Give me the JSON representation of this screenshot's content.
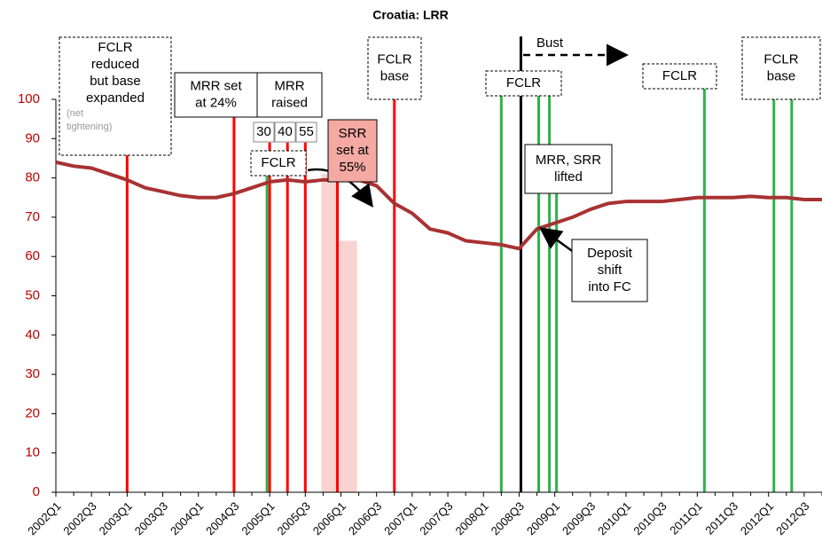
{
  "chart_data": {
    "type": "line",
    "title": "Croatia: LRR",
    "categories": [
      "2002Q1",
      null,
      "2002Q3",
      null,
      "2003Q1",
      null,
      "2003Q3",
      null,
      "2004Q1",
      null,
      "2004Q3",
      null,
      "2005Q1",
      null,
      "2005Q3",
      null,
      "2006Q1",
      null,
      "2006Q3",
      null,
      "2007Q1",
      null,
      "2007Q3",
      null,
      "2008Q1",
      null,
      "2008Q3",
      null,
      "2009Q1",
      null,
      "2009Q3",
      null,
      "2010Q1",
      null,
      "2010Q3",
      null,
      "2011Q1",
      null,
      "2011Q3",
      null,
      "2012Q1",
      null,
      "2012Q3",
      null
    ],
    "series": [
      {
        "color": "#a83232",
        "values": [
          84,
          83,
          82.5,
          81,
          79.5,
          77.5,
          76.5,
          75.5,
          75,
          75,
          76,
          77.5,
          79,
          79.5,
          79,
          79.5,
          79.5,
          79.5,
          78,
          73.5,
          71,
          67,
          66,
          64,
          63.5,
          63,
          62,
          67,
          68.5,
          70,
          72,
          73.5,
          74,
          74,
          74,
          74.5,
          75,
          75,
          75,
          75.3,
          75,
          75,
          74.5,
          74.5
        ]
      }
    ],
    "ylim": [
      0,
      100
    ],
    "yticks": [
      0,
      10,
      20,
      30,
      40,
      50,
      60,
      70,
      80,
      90,
      100
    ],
    "shaded": {
      "color": "#f9d3cf",
      "x": [
        15,
        16
      ],
      "values": [
        81,
        64
      ]
    },
    "vlines": [
      {
        "x": 4,
        "top": 86,
        "color": "#ff0000"
      },
      {
        "x": 10,
        "top": 98.6,
        "color": "#ff0000"
      },
      {
        "x": 12,
        "top": 89,
        "color": "#ff0000"
      },
      {
        "x": 13,
        "top": 89,
        "color": "#ff0000"
      },
      {
        "x": 14,
        "top": 89,
        "color": "#ff0000"
      },
      {
        "x": 15.8,
        "top": 79,
        "color": "#ff0000"
      },
      {
        "x": 19,
        "top": 100,
        "color": "#ff0000"
      },
      {
        "x": 11.85,
        "top": 87,
        "color": "#2db34a"
      },
      {
        "x": 25,
        "top": 101,
        "color": "#2db34a"
      },
      {
        "x": 27.1,
        "top": 101,
        "color": "#2db34a"
      },
      {
        "x": 27.7,
        "top": 101,
        "color": "#2db34a"
      },
      {
        "x": 28.1,
        "top": 76,
        "color": "#2db34a"
      },
      {
        "x": 36.4,
        "top": 103,
        "color": "#2db34a"
      },
      {
        "x": 40.3,
        "top": 100,
        "color": "#2db34a"
      },
      {
        "x": 41.3,
        "top": 100,
        "color": "#2db34a"
      },
      {
        "x": 26.1,
        "top": 116,
        "color": "#000000"
      }
    ],
    "annotations": [
      {
        "lines": [
          "FCLR",
          "reduced",
          "but base",
          "expanded"
        ],
        "note": [
          "(net",
          "tightening)"
        ]
      },
      {
        "lines": [
          "MRR set",
          "at 24%"
        ]
      },
      {
        "lines": [
          "MRR",
          "raised"
        ]
      },
      {
        "lines": [
          "30"
        ]
      },
      {
        "lines": [
          "40"
        ]
      },
      {
        "lines": [
          "55"
        ]
      },
      {
        "lines": [
          "FCLR"
        ]
      },
      {
        "lines": [
          "SRR",
          "set at",
          "55%"
        ]
      },
      {
        "lines": [
          "FCLR",
          "base"
        ]
      },
      {
        "lines": [
          "FCLR"
        ]
      },
      {
        "lines": [
          "Bust"
        ]
      },
      {
        "lines": [
          "MRR, SRR",
          "lifted"
        ]
      },
      {
        "lines": [
          "Deposit",
          "shift",
          "into FC"
        ]
      },
      {
        "lines": [
          "FCLR"
        ]
      },
      {
        "lines": [
          "FCLR",
          "base"
        ]
      }
    ]
  }
}
